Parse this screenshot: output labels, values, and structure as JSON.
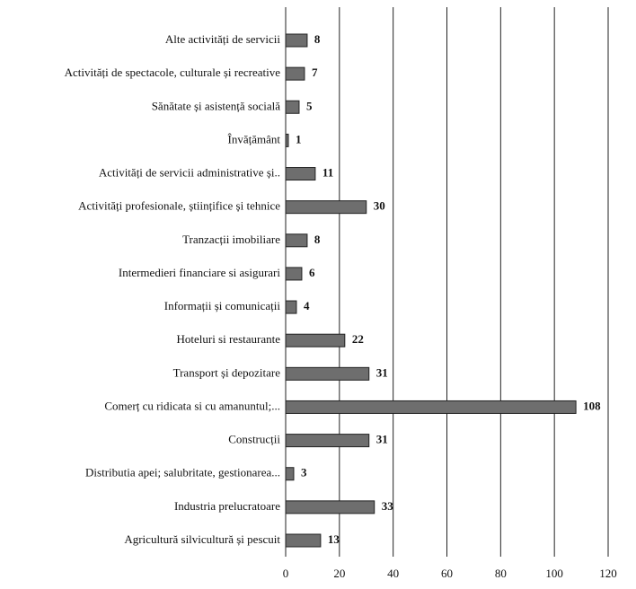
{
  "chart_data": {
    "type": "bar",
    "orientation": "horizontal",
    "categories": [
      "Alte activități de servicii",
      "Activități de spectacole, culturale și recreative",
      "Sănătate și asistență socială",
      "Învățământ",
      "Activități de servicii administrative și..",
      "Activități profesionale, științifice și tehnice",
      "Tranzacții imobiliare",
      "Intermedieri financiare si asigurari",
      "Informații și comunicații",
      "Hoteluri si restaurante",
      "Transport și depozitare",
      "Comerț cu ridicata si cu amanuntul;...",
      "Construcții",
      "Distributia apei; salubritate, gestionarea...",
      "Industria prelucratoare",
      "Agricultură silvicultură și pescuit"
    ],
    "values": [
      8,
      7,
      5,
      1,
      11,
      30,
      8,
      6,
      4,
      22,
      31,
      108,
      31,
      3,
      33,
      13
    ],
    "color": "#6e6e6e",
    "xlim": [
      0,
      120
    ],
    "xticks": [
      0,
      20,
      40,
      60,
      80,
      100,
      120
    ],
    "grid": true
  }
}
